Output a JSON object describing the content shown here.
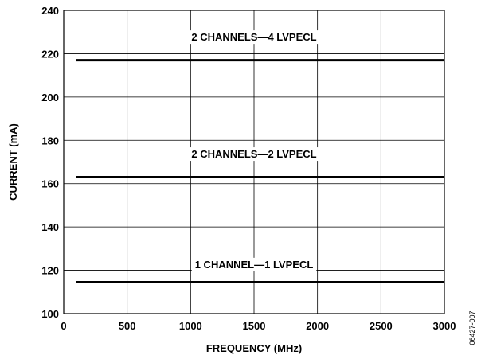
{
  "chart_data": {
    "type": "line",
    "title": "",
    "xlabel": "FREQUENCY (MHz)",
    "ylabel": "CURRENT (mA)",
    "xlim": [
      0,
      3000
    ],
    "ylim": [
      100,
      240
    ],
    "x_ticks": [
      0,
      500,
      1000,
      1500,
      2000,
      2500,
      3000
    ],
    "y_ticks": [
      100,
      120,
      140,
      160,
      180,
      200,
      220,
      240
    ],
    "grid": true,
    "legend": "inline",
    "series": [
      {
        "name": "2 CHANNELS—4 LVPECL",
        "x": [
          100,
          3000
        ],
        "y": [
          217,
          217
        ]
      },
      {
        "name": "2 CHANNELS—2 LVPECL",
        "x": [
          100,
          3000
        ],
        "y": [
          163,
          163
        ]
      },
      {
        "name": "1 CHANNEL—1 LVPECL",
        "x": [
          100,
          3000
        ],
        "y": [
          114.5,
          114.5
        ]
      }
    ],
    "annotations": [
      {
        "text": "2 CHANNELS—4 LVPECL",
        "x": 1500,
        "y": 226
      },
      {
        "text": "2 CHANNELS—2 LVPECL",
        "x": 1500,
        "y": 172
      },
      {
        "text": "1 CHANNEL—1 LVPECL",
        "x": 1500,
        "y": 121
      }
    ]
  },
  "figure_id": "06427-007"
}
